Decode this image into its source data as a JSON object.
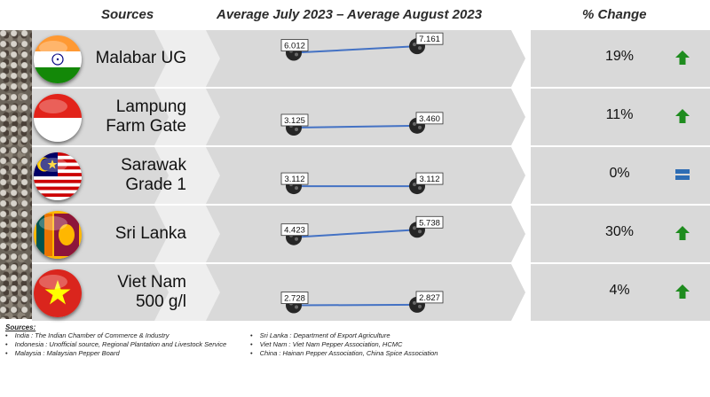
{
  "headers": {
    "sources": "Sources",
    "period": "Average July 2023 – Average August 2023",
    "change": "% Change"
  },
  "rows": [
    {
      "name1": "Malabar UG",
      "name2": "",
      "flag": "india-flag",
      "trend": "up",
      "change": "19%"
    },
    {
      "name1": "Lampung",
      "name2": "Farm Gate",
      "flag": "indonesia-flag",
      "trend": "up",
      "change": "11%"
    },
    {
      "name1": "Sarawak",
      "name2": "Grade 1",
      "flag": "malaysia-flag",
      "trend": "equal",
      "change": "0%"
    },
    {
      "name1": "Sri Lanka",
      "name2": "",
      "flag": "sri-lanka-flag",
      "trend": "up",
      "change": "30%"
    },
    {
      "name1": "Viet Nam",
      "name2": "500 g/l",
      "flag": "vietnam-flag",
      "trend": "up",
      "change": "4%"
    }
  ],
  "chart_data": {
    "type": "line",
    "title": "Average July 2023 – Average August 2023",
    "x": [
      "Average July 2023",
      "Average August 2023"
    ],
    "series": [
      {
        "name": "Malabar UG",
        "values": [
          6.012,
          7.161
        ],
        "labels": [
          "6.012",
          "7.161"
        ]
      },
      {
        "name": "Lampung Farm Gate",
        "values": [
          3.125,
          3.46
        ],
        "labels": [
          "3.125",
          "3.460"
        ]
      },
      {
        "name": "Sarawak Grade 1",
        "values": [
          3.112,
          3.112
        ],
        "labels": [
          "3.112",
          "3.112"
        ]
      },
      {
        "name": "Sri Lanka",
        "values": [
          4.423,
          5.738
        ],
        "labels": [
          "4.423",
          "5.738"
        ]
      },
      {
        "name": "Viet Nam 500 g/l",
        "values": [
          2.728,
          2.827
        ],
        "labels": [
          "2.728",
          "2.827"
        ]
      }
    ]
  },
  "colors": {
    "band": "#d9d9d9",
    "line": "#4472c4",
    "arrow_up": "#1e8c1e",
    "equal": "#2e6db4",
    "marker": "#262626"
  },
  "sources_title": "Sources:",
  "sources_left": [
    "India : The Indian Chamber of Commerce & Industry",
    "Indonesia : Unofficial source, Regional Plantation and Livestock Service",
    "Malaysia : Malaysian Pepper Board"
  ],
  "sources_right": [
    "Sri Lanka : Department of Export Agriculture",
    "Viet Nam : Viet Nam Pepper Association, HCMC",
    "China : Hainan Pepper Association, China Spice Association"
  ]
}
